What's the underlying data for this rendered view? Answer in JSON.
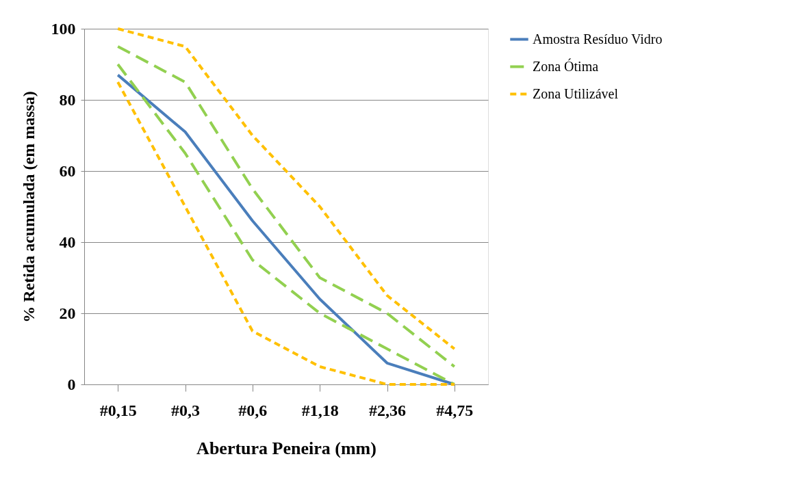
{
  "chart_data": {
    "type": "line",
    "xlabel": "Abertura Peneira (mm)",
    "ylabel": "% Retida acumulada (em massa)",
    "categories": [
      "#0,15",
      "#0,3",
      "#0,6",
      "#1,18",
      "#2,36",
      "#4,75"
    ],
    "series": [
      {
        "name": "Amostra Resíduo Vidro",
        "color": "#4a7ebb",
        "line_style": "solid",
        "values": [
          87,
          71,
          46,
          24,
          6,
          0
        ]
      },
      {
        "name": "Zona Ótima",
        "color": "#92d050",
        "line_style": "dashed",
        "values": [
          95,
          85,
          55,
          30,
          20,
          5
        ]
      },
      {
        "name": "Zona Utilizável",
        "color": "#ffc000",
        "line_style": "dotted",
        "values": [
          100,
          95,
          70,
          50,
          25,
          10
        ]
      },
      {
        "color": "#92d050",
        "line_style": "dashed",
        "values": [
          90,
          65,
          35,
          20,
          10,
          0
        ]
      },
      {
        "color": "#ffc000",
        "line_style": "dotted",
        "values": [
          85,
          50,
          15,
          5,
          0,
          0
        ]
      }
    ],
    "ylim": [
      0,
      100
    ],
    "yticks": [
      0,
      20,
      40,
      60,
      80,
      100
    ],
    "grid": "y",
    "legend": "right",
    "marker": "none"
  }
}
